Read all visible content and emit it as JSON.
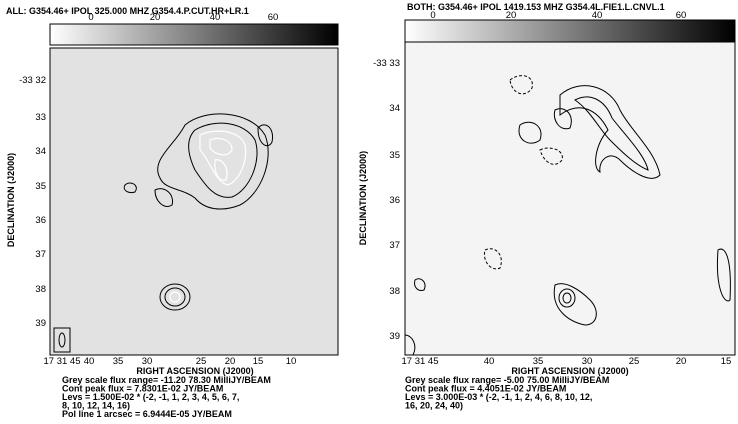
{
  "panels": [
    {
      "title": "ALL: G354.46+  IPOL  325.000 MHZ  G354.4.P.CUT.HR+LR.1",
      "colorbar_ticks": [
        "0",
        "20",
        "40",
        "60"
      ],
      "y_ticks": [
        "-33 32",
        "33",
        "34",
        "35",
        "36",
        "37",
        "38",
        "39"
      ],
      "x_ticks": [
        "17 31 45",
        "40",
        "35",
        "30",
        "25",
        "20",
        "15",
        "10"
      ],
      "x_label": "RIGHT ASCENSION (J2000)",
      "y_label": "DECLINATION (J2000)",
      "notes": [
        "Grey scale flux range= -11.20 78.30 MilliJY/BEAM",
        "Cont peak flux =  7.8301E-02 JY/BEAM",
        "Levs = 1.500E-02 * (-2, -1, 1, 2, 3, 4, 5, 6, 7,",
        "8, 10, 12, 14, 16)",
        "Pol line 1 arcsec =  6.9444E-05 JY/BEAM"
      ]
    },
    {
      "title": "BOTH: G354.46+  IPOL  1419.153 MHZ  G354.4L.FIE1.L.CNVL.1",
      "colorbar_ticks": [
        "0",
        "20",
        "40",
        "60"
      ],
      "y_ticks": [
        "-33 33",
        "34",
        "35",
        "36",
        "37",
        "38",
        "39"
      ],
      "x_ticks": [
        "17 31 45",
        "40",
        "35",
        "30",
        "25",
        "20",
        "15"
      ],
      "x_label": "RIGHT ASCENSION (J2000)",
      "y_label": "DECLINATION (J2000)",
      "notes": [
        "Grey scale flux range= -5.00 75.00 MilliJY/BEAM",
        "Cont peak flux =  4.4051E-02 JY/BEAM",
        "Levs = 3.000E-03 * (-2, -1, 1, 2, 4, 6, 8, 10, 12,",
        "16, 20, 24, 40)"
      ]
    }
  ]
}
